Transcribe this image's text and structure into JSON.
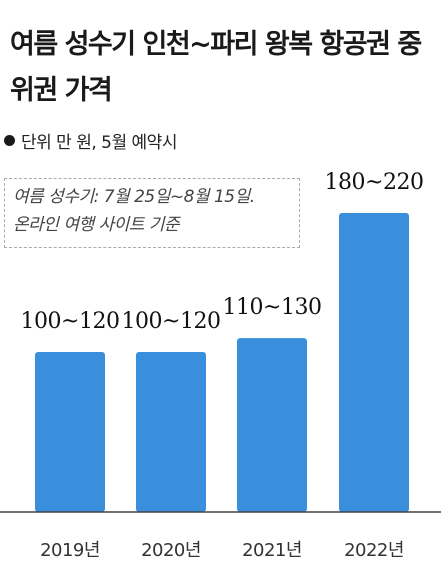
{
  "title": "여름 성수기 인천~파리 왕복 항공권 중위권 가격",
  "unit_note": "단위 만 원, 5월 예약시",
  "annotation": {
    "line1": "여름 성수기: 7월 25일~8월 15일.",
    "line2": "온라인 여행 사이트 기준"
  },
  "chart_data": {
    "type": "bar",
    "categories": [
      "2019년",
      "2020년",
      "2021년",
      "2022년"
    ],
    "values": [
      [
        100,
        120
      ],
      [
        100,
        120
      ],
      [
        110,
        130
      ],
      [
        180,
        220
      ]
    ],
    "value_labels": [
      "100~120",
      "100~120",
      "110~130",
      "180~220"
    ],
    "bar_color": "#3a8fdc",
    "ylim": [
      0,
      220
    ]
  }
}
